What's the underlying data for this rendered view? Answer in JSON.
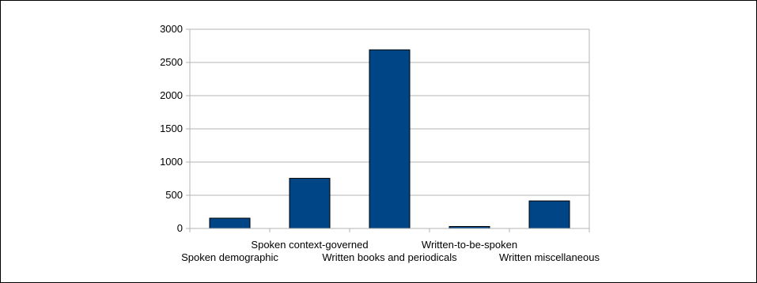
{
  "chart_data": {
    "type": "bar",
    "categories": [
      "Spoken demographic",
      "Spoken context-governed",
      "Written books and periodicals",
      "Written-to-be-spoken",
      "Written miscellaneous"
    ],
    "values": [
      155,
      755,
      2690,
      30,
      415
    ],
    "title": "",
    "xlabel": "",
    "ylabel": "",
    "ylim": [
      0,
      3000
    ],
    "yticks": [
      0,
      500,
      1000,
      1500,
      2000,
      2500,
      3000
    ],
    "ytick_labels": [
      "0",
      "500",
      "1000",
      "1500",
      "2000",
      "2500",
      "3000"
    ],
    "grid": true,
    "legend": "none",
    "bar_color": "#004586",
    "bar_edge_color": "#000000",
    "grid_color": "#b3b3b3"
  }
}
